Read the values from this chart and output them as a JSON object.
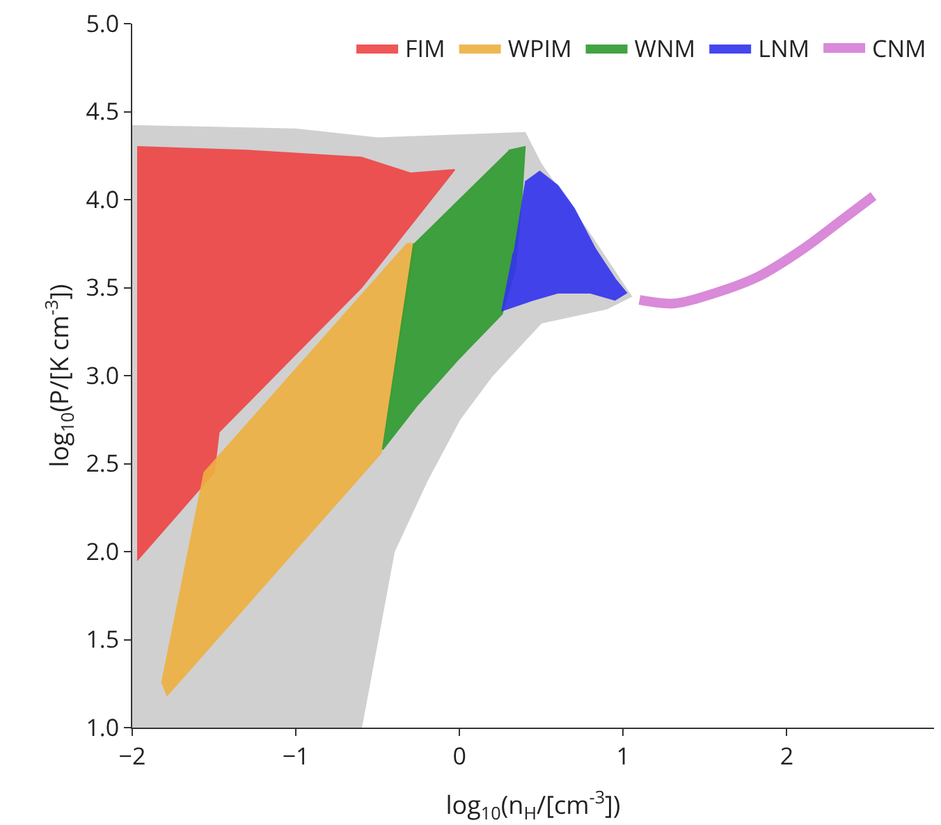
{
  "chart_data": {
    "type": "area",
    "xlabel": "log$_{10}$(n$_{H}$/[cm$^{-3}$])",
    "ylabel": "log$_{10}$(P/[K cm$^{-3}$])",
    "xlim": [
      -2,
      2.9
    ],
    "ylim": [
      1,
      5
    ],
    "xticks": [
      {
        "value": -2,
        "label": "−2"
      },
      {
        "value": -1,
        "label": "−1"
      },
      0,
      1,
      2
    ],
    "yticks": [
      {
        "value": 1,
        "label": "1.0"
      },
      {
        "value": 1.5,
        "label": "1.5"
      },
      {
        "value": 2,
        "label": "2.0"
      },
      {
        "value": 2.5,
        "label": "2.5"
      },
      {
        "value": 3,
        "label": "3.0"
      },
      {
        "value": 3.5,
        "label": "3.5"
      },
      {
        "value": 4,
        "label": "4.0"
      },
      {
        "value": 4.5,
        "label": "4.5"
      },
      {
        "value": 5,
        "label": "5.0"
      }
    ],
    "grid": false,
    "legend": "top right",
    "series": [
      {
        "color": "#cccccc",
        "x": [
          -2,
          -1,
          -0.5,
          0.4,
          0.5,
          0.8,
          1.05,
          0.9,
          0.5,
          0.2,
          0,
          -0.2,
          -0.4,
          -0.5,
          -0.6,
          -2
        ],
        "values": [
          4.42,
          4.4,
          4.35,
          4.38,
          4.2,
          3.8,
          3.45,
          3.38,
          3.3,
          3.0,
          2.75,
          2.4,
          2.0,
          1.5,
          1.0,
          1.0
        ]
      },
      {
        "name": "FIM",
        "color": "#ee4444",
        "x": [
          -1.97,
          -1.3,
          -0.6,
          -0.3,
          -0.03,
          -0.6,
          -1.47,
          -1.5,
          -1.97
        ],
        "values": [
          4.3,
          4.28,
          4.24,
          4.15,
          4.17,
          3.5,
          2.68,
          2.45,
          1.95
        ]
      },
      {
        "name": "WPIM",
        "color": "#eeb040",
        "x": [
          -1.79,
          -0.48,
          -0.27,
          -0.32,
          -1.56,
          -1.82
        ],
        "values": [
          1.18,
          2.56,
          3.75,
          3.75,
          2.45,
          1.25
        ]
      },
      {
        "name": "WNM",
        "color": "#2e9a2e",
        "x": [
          0.3,
          0.4,
          0.38,
          0.34,
          0.26,
          0,
          -0.26,
          -0.47,
          -0.28
        ],
        "values": [
          4.28,
          4.3,
          4.0,
          3.6,
          3.35,
          3.1,
          2.83,
          2.58,
          3.75
        ]
      },
      {
        "name": "LNM",
        "color": "#3333ee",
        "x": [
          0.4,
          0.49,
          0.6,
          0.7,
          0.83,
          0.95,
          1.02,
          0.95,
          0.8,
          0.6,
          0.45,
          0.26,
          0.33
        ],
        "values": [
          4.1,
          4.16,
          4.08,
          3.95,
          3.72,
          3.55,
          3.47,
          3.43,
          3.47,
          3.47,
          3.43,
          3.37,
          3.7
        ]
      },
      {
        "name": "CNM",
        "type": "line",
        "color": "#d98ad9",
        "x": [
          1.1,
          1.31,
          1.53,
          1.82,
          2.1,
          2.33,
          2.53
        ],
        "values": [
          3.43,
          3.41,
          3.46,
          3.56,
          3.72,
          3.88,
          4.02
        ]
      }
    ]
  }
}
